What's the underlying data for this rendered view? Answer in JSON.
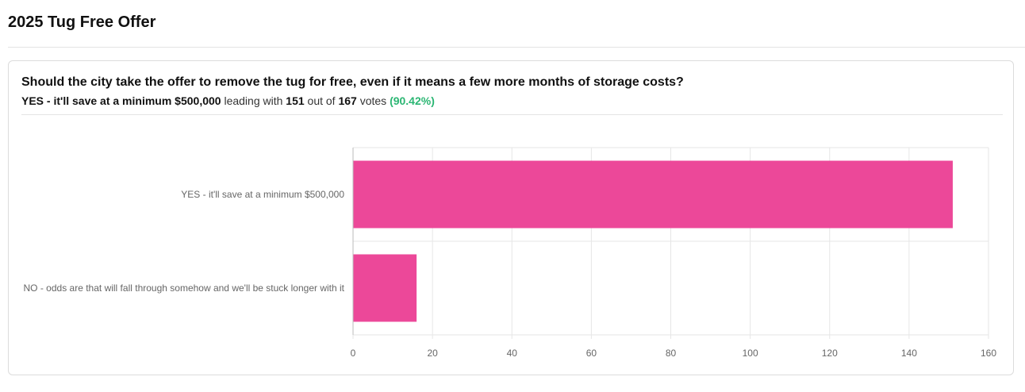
{
  "page": {
    "title": "2025 Tug Free Offer"
  },
  "poll": {
    "question": "Should the city take the offer to remove the tug for free, even if it means a few more months of storage costs?",
    "leader": "YES - it'll save at a minimum $500,000",
    "leading_text": "leading with",
    "leader_votes": "151",
    "out_of_text": "out of",
    "total_votes": "167",
    "votes_text": "votes",
    "leader_pct": "(90.42%)"
  },
  "colors": {
    "bar": "#ec4899",
    "grid": "#e6e6e6",
    "accent_pct": "#2bb673"
  },
  "chart_data": {
    "type": "bar",
    "orientation": "horizontal",
    "categories": [
      "YES - it'll save at a minimum $500,000",
      "NO - odds are that will fall through somehow and we'll be stuck longer with it"
    ],
    "values": [
      151,
      16
    ],
    "xlim": [
      0,
      160
    ],
    "xticks": [
      0,
      20,
      40,
      60,
      80,
      100,
      120,
      140,
      160
    ],
    "grid": true,
    "legend": "none"
  }
}
